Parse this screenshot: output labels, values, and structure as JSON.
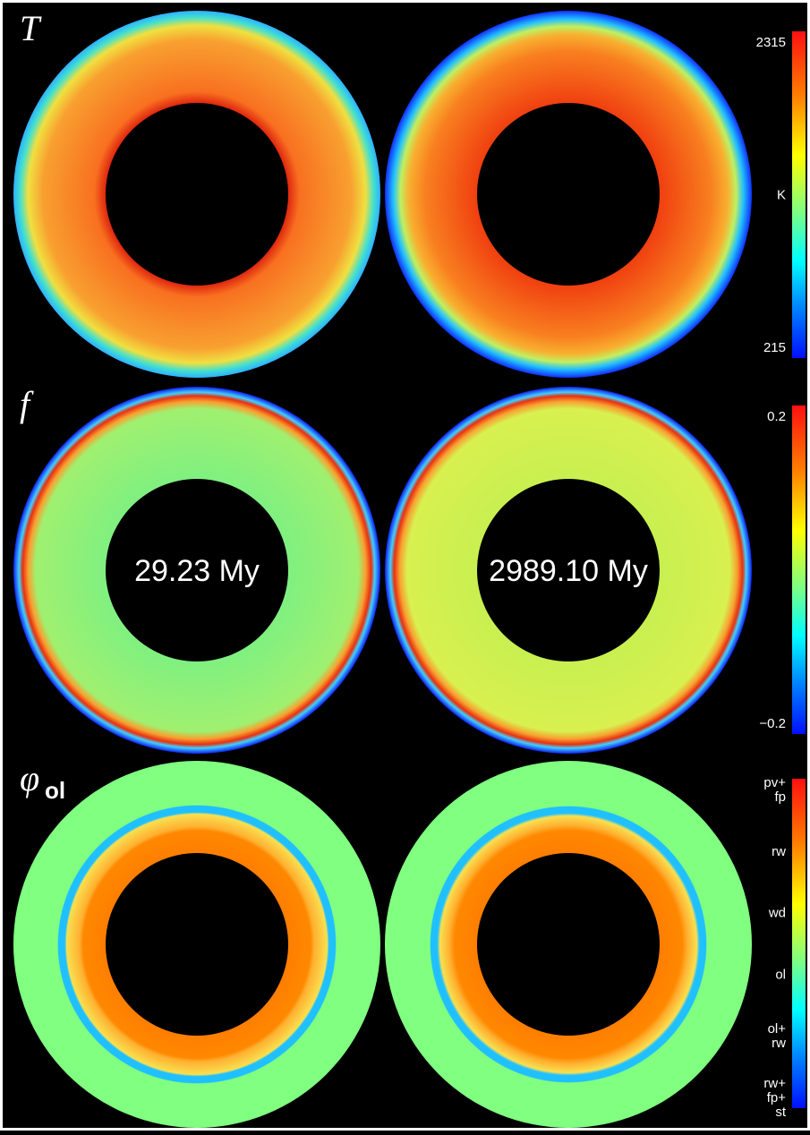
{
  "panels": [
    {
      "symbol": "T",
      "colorbar": {
        "labels": [
          [
            "2315"
          ],
          [
            "K"
          ],
          [
            "215"
          ]
        ]
      }
    },
    {
      "symbol": "f",
      "colorbar": {
        "labels": [
          [
            "0.2"
          ],
          [
            "−0.2"
          ]
        ]
      }
    },
    {
      "symbol": "φ",
      "subscript": "ol",
      "colorbar": {
        "labels": [
          [
            "pv+",
            "fp"
          ],
          [
            "rw"
          ],
          [
            "wd"
          ],
          [
            "ol"
          ],
          [
            "ol+",
            "rw"
          ],
          [
            "rw+",
            "fp+",
            "st"
          ]
        ]
      }
    }
  ],
  "times": [
    "29.23 My",
    "2989.10 My"
  ]
}
